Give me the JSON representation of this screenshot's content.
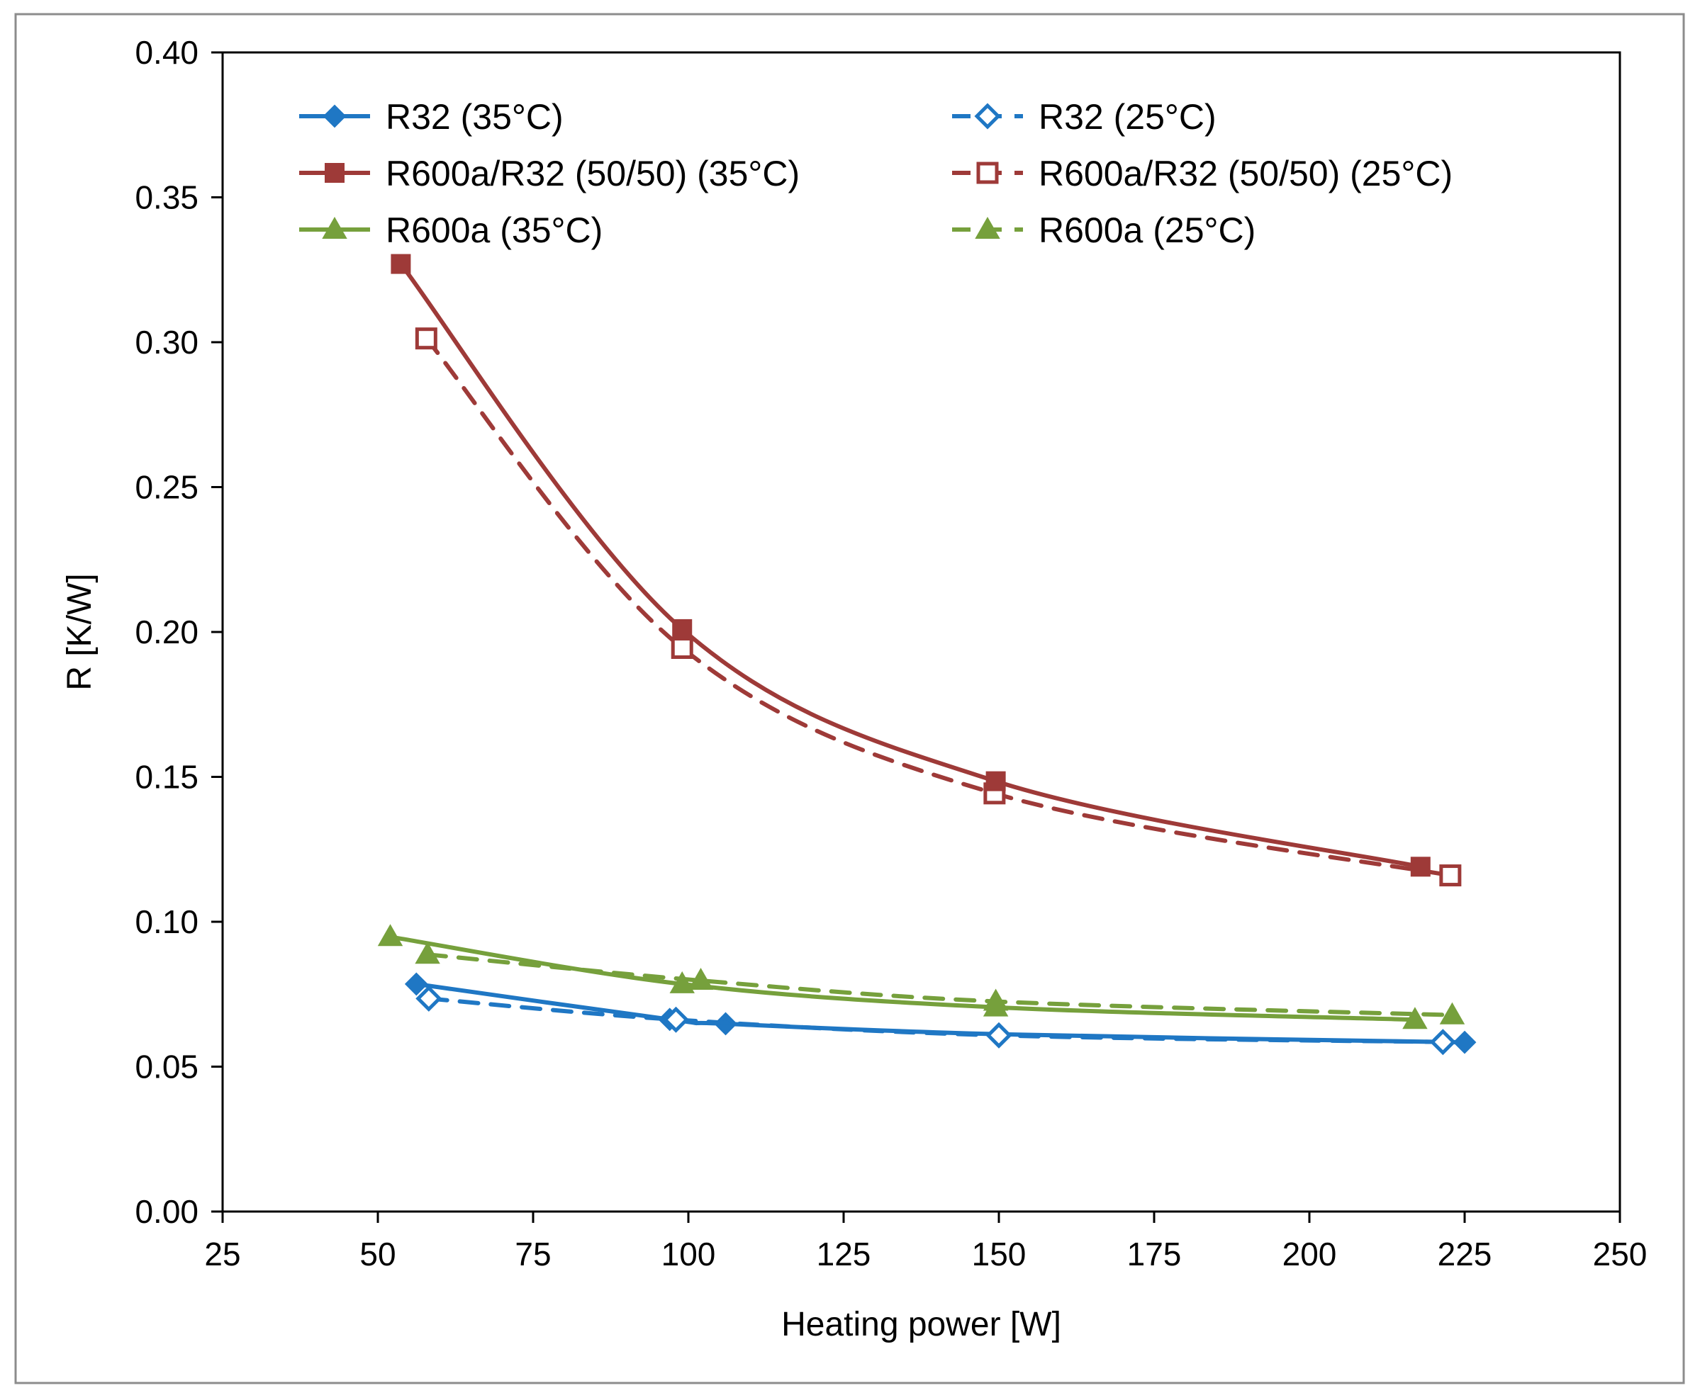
{
  "chart_data": {
    "type": "line",
    "title": "",
    "xlabel": "Heating power [W]",
    "ylabel": "R [K/W]",
    "xlim": [
      25,
      250
    ],
    "ylim": [
      0,
      0.4
    ],
    "xticks": [
      25,
      50,
      75,
      100,
      125,
      150,
      175,
      200,
      225,
      250
    ],
    "yticks": [
      0.0,
      0.05,
      0.1,
      0.15,
      0.2,
      0.25,
      0.3,
      0.35,
      0.4
    ],
    "xtick_labels": [
      "25",
      "50",
      "75",
      "100",
      "125",
      "150",
      "175",
      "200",
      "225",
      "250"
    ],
    "ytick_labels": [
      "0.00",
      "0.05",
      "0.10",
      "0.15",
      "0.20",
      "0.25",
      "0.30",
      "0.35",
      "0.40"
    ],
    "grid": false,
    "legend_position": "top",
    "series": [
      {
        "name": "R32 (35°C)",
        "color": "#1f77c4",
        "marker": "diamond-filled",
        "line": "solid",
        "x": [
          56.2,
          97,
          106,
          150,
          225
        ],
        "y": [
          0.0785,
          0.0663,
          0.0648,
          0.0612,
          0.0584
        ]
      },
      {
        "name": "R32 (25°C)",
        "color": "#1f77c4",
        "marker": "diamond-open",
        "line": "dashed",
        "x": [
          58.2,
          98,
          150,
          221.5
        ],
        "y": [
          0.0735,
          0.0662,
          0.0608,
          0.0585
        ]
      },
      {
        "name": "R600a/R32 (50/50) (35°C)",
        "color": "#9e3a38",
        "marker": "square-filled",
        "line": "solid",
        "x": [
          53.7,
          99,
          149.5,
          217.9
        ],
        "y": [
          0.327,
          0.201,
          0.1485,
          0.119
        ]
      },
      {
        "name": "R600a/R32 (50/50) (25°C)",
        "color": "#9e3a38",
        "marker": "square-open",
        "line": "dashed",
        "x": [
          57.8,
          99,
          149.3,
          222.7
        ],
        "y": [
          0.3013,
          0.1945,
          0.1443,
          0.116
        ]
      },
      {
        "name": "R600a (35°C)",
        "color": "#76a03c",
        "marker": "triangle-filled",
        "line": "solid",
        "x": [
          52,
          99,
          149.5,
          217
        ],
        "y": [
          0.0948,
          0.0785,
          0.0705,
          0.0662
        ]
      },
      {
        "name": "R600a (25°C)",
        "color": "#76a03c",
        "marker": "triangle-filled",
        "line": "dashed",
        "x": [
          58,
          102,
          149.5,
          223
        ],
        "y": [
          0.0887,
          0.0797,
          0.0725,
          0.0678
        ]
      }
    ]
  }
}
